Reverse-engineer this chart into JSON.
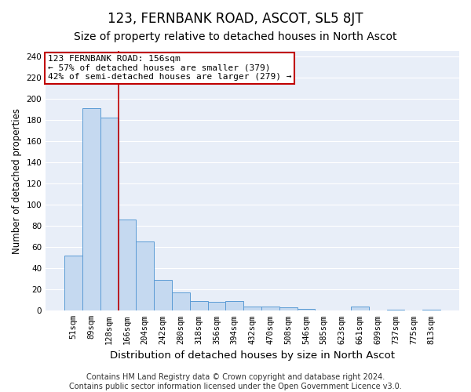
{
  "title": "123, FERNBANK ROAD, ASCOT, SL5 8JT",
  "subtitle": "Size of property relative to detached houses in North Ascot",
  "xlabel": "Distribution of detached houses by size in North Ascot",
  "ylabel": "Number of detached properties",
  "categories": [
    "51sqm",
    "89sqm",
    "128sqm",
    "166sqm",
    "204sqm",
    "242sqm",
    "280sqm",
    "318sqm",
    "356sqm",
    "394sqm",
    "432sqm",
    "470sqm",
    "508sqm",
    "546sqm",
    "585sqm",
    "623sqm",
    "661sqm",
    "699sqm",
    "737sqm",
    "775sqm",
    "813sqm"
  ],
  "values": [
    52,
    191,
    182,
    86,
    65,
    29,
    17,
    9,
    8,
    9,
    4,
    4,
    3,
    2,
    0,
    0,
    4,
    0,
    1,
    0,
    1
  ],
  "bar_color": "#c5d9f0",
  "bar_edge_color": "#5b9bd5",
  "vline_x": 2.5,
  "vline_color": "#c00000",
  "annotation_line1": "123 FERNBANK ROAD: 156sqm",
  "annotation_line2": "← 57% of detached houses are smaller (379)",
  "annotation_line3": "42% of semi-detached houses are larger (279) →",
  "annotation_box_color": "#ffffff",
  "annotation_box_edge": "#c00000",
  "ylim": [
    0,
    245
  ],
  "yticks": [
    0,
    20,
    40,
    60,
    80,
    100,
    120,
    140,
    160,
    180,
    200,
    220,
    240
  ],
  "footer1": "Contains HM Land Registry data © Crown copyright and database right 2024.",
  "footer2": "Contains public sector information licensed under the Open Government Licence v3.0.",
  "fig_background_color": "#ffffff",
  "axes_background_color": "#e8eef8",
  "grid_color": "#ffffff",
  "title_fontsize": 12,
  "subtitle_fontsize": 10,
  "tick_fontsize": 7.5,
  "ylabel_fontsize": 8.5,
  "xlabel_fontsize": 9.5,
  "footer_fontsize": 7,
  "annotation_fontsize": 8
}
